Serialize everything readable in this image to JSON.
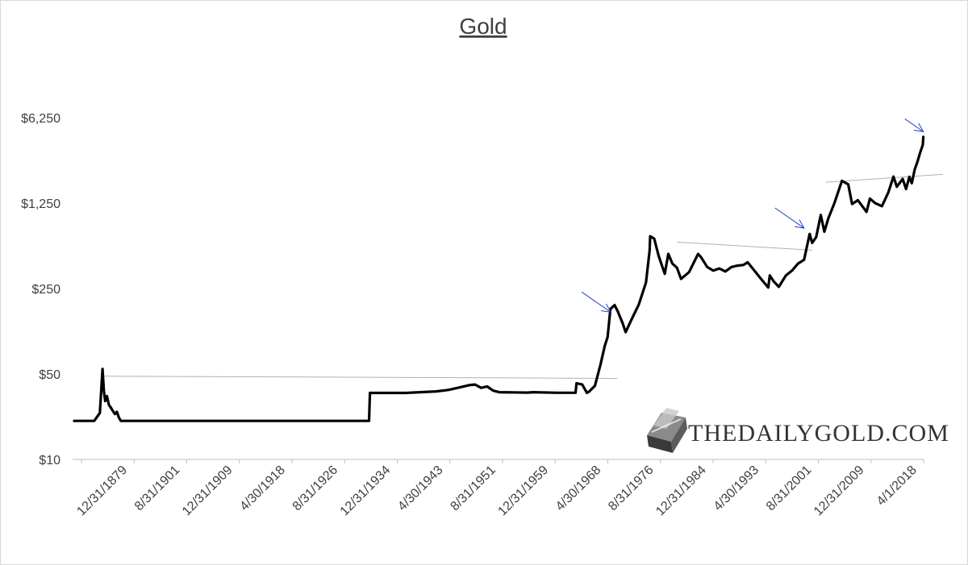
{
  "chart_data": {
    "type": "line",
    "title": "Gold",
    "xlabel": "",
    "ylabel": "",
    "y_scale": "log",
    "ylim": [
      10,
      12000
    ],
    "y_ticks": [
      {
        "value": 10,
        "label": "$10"
      },
      {
        "value": 50,
        "label": "$50"
      },
      {
        "value": 250,
        "label": "$250"
      },
      {
        "value": 1250,
        "label": "$1,250"
      },
      {
        "value": 6250,
        "label": "$6,250"
      }
    ],
    "x_ticks": [
      "12/31/1879",
      "8/31/1901",
      "12/31/1909",
      "4/30/1918",
      "8/31/1926",
      "12/31/1934",
      "4/30/1943",
      "8/31/1951",
      "12/31/1959",
      "4/30/1968",
      "8/31/1976",
      "12/31/1984",
      "4/30/1993",
      "8/31/2001",
      "12/31/2009",
      "4/1/2018"
    ],
    "grid": false,
    "legend": "none",
    "series": [
      {
        "color": "#000000",
        "points": [
          [
            "1870-01",
            20.67
          ],
          [
            "1875-01",
            20.67
          ],
          [
            "1876-06",
            24.0
          ],
          [
            "1877-02",
            55.0
          ],
          [
            "1877-06",
            36.0
          ],
          [
            "1877-10",
            30.0
          ],
          [
            "1878-03",
            33.0
          ],
          [
            "1878-09",
            28.0
          ],
          [
            "1879-03",
            26.5
          ],
          [
            "1879-09",
            25.0
          ],
          [
            "1880-03",
            23.5
          ],
          [
            "1880-09",
            24.5
          ],
          [
            "1881-03",
            22.0
          ],
          [
            "1881-09",
            20.67
          ],
          [
            "1900-01",
            20.67
          ],
          [
            "1920-01",
            20.67
          ],
          [
            "1933-12",
            20.67
          ],
          [
            "1934-02",
            35.0
          ],
          [
            "1940-01",
            35.0
          ],
          [
            "1945-01",
            36.0
          ],
          [
            "1947-01",
            37.0
          ],
          [
            "1949-01",
            39.0
          ],
          [
            "1950-06",
            40.5
          ],
          [
            "1951-06",
            41.0
          ],
          [
            "1952-06",
            38.5
          ],
          [
            "1953-06",
            39.5
          ],
          [
            "1954-06",
            36.5
          ],
          [
            "1955-06",
            35.5
          ],
          [
            "1960-01",
            35.2
          ],
          [
            "1961-01",
            35.5
          ],
          [
            "1965-01",
            35.1
          ],
          [
            "1968-01",
            35.1
          ],
          [
            "1968-03",
            42.0
          ],
          [
            "1969-03",
            41.0
          ],
          [
            "1970-01",
            35.0
          ],
          [
            "1970-06",
            36.0
          ],
          [
            "1971-06",
            40.0
          ],
          [
            "1972-06",
            60.0
          ],
          [
            "1973-03",
            85.0
          ],
          [
            "1973-09",
            100.0
          ],
          [
            "1974-03",
            170.0
          ],
          [
            "1974-12",
            183.0
          ],
          [
            "1975-06",
            165.0
          ],
          [
            "1976-03",
            130.0
          ],
          [
            "1976-08",
            110.0
          ],
          [
            "1977-06",
            140.0
          ],
          [
            "1978-06",
            185.0
          ],
          [
            "1979-06",
            280.0
          ],
          [
            "1979-12",
            510.0
          ],
          [
            "1980-01",
            670.0
          ],
          [
            "1980-09",
            640.0
          ],
          [
            "1981-06",
            460.0
          ],
          [
            "1982-06",
            330.0
          ],
          [
            "1983-01",
            480.0
          ],
          [
            "1983-09",
            400.0
          ],
          [
            "1984-06",
            370.0
          ],
          [
            "1985-02",
            300.0
          ],
          [
            "1986-06",
            340.0
          ],
          [
            "1987-12",
            480.0
          ],
          [
            "1988-06",
            450.0
          ],
          [
            "1989-06",
            375.0
          ],
          [
            "1990-06",
            350.0
          ],
          [
            "1991-06",
            365.0
          ],
          [
            "1992-06",
            345.0
          ],
          [
            "1993-06",
            375.0
          ],
          [
            "1994-06",
            385.0
          ],
          [
            "1995-06",
            390.0
          ],
          [
            "1996-02",
            410.0
          ],
          [
            "1997-06",
            340.0
          ],
          [
            "1998-06",
            295.0
          ],
          [
            "1999-07",
            255.0
          ],
          [
            "1999-10",
            320.0
          ],
          [
            "2000-06",
            285.0
          ],
          [
            "2001-04",
            258.0
          ],
          [
            "2002-06",
            320.0
          ],
          [
            "2003-06",
            350.0
          ],
          [
            "2004-06",
            400.0
          ],
          [
            "2005-06",
            430.0
          ],
          [
            "2006-05",
            700.0
          ],
          [
            "2006-10",
            590.0
          ],
          [
            "2007-06",
            660.0
          ],
          [
            "2008-03",
            1000.0
          ],
          [
            "2008-10",
            730.0
          ],
          [
            "2009-06",
            940.0
          ],
          [
            "2010-06",
            1250.0
          ],
          [
            "2011-09",
            1900.0
          ],
          [
            "2012-10",
            1780.0
          ],
          [
            "2013-06",
            1230.0
          ],
          [
            "2014-06",
            1320.0
          ],
          [
            "2015-12",
            1060.0
          ],
          [
            "2016-07",
            1360.0
          ],
          [
            "2017-06",
            1250.0
          ],
          [
            "2018-08",
            1180.0
          ],
          [
            "2019-09",
            1520.0
          ],
          [
            "2020-08",
            2060.0
          ],
          [
            "2021-03",
            1700.0
          ],
          [
            "2022-03",
            1970.0
          ],
          [
            "2022-10",
            1630.0
          ],
          [
            "2023-05",
            2050.0
          ],
          [
            "2023-10",
            1820.0
          ],
          [
            "2024-04",
            2350.0
          ],
          [
            "2024-10",
            2750.0
          ],
          [
            "2025-04",
            3300.0
          ],
          [
            "2025-09",
            3750.0
          ],
          [
            "2025-10",
            4350.0
          ]
        ]
      }
    ],
    "annotations": {
      "resistance_lines": [
        {
          "from": [
            "1877-06",
            48.0
          ],
          "to": [
            "1975-06",
            46.0
          ]
        },
        {
          "from": [
            "1984-06",
            600.0
          ],
          "to": [
            "2006-10",
            515.0
          ]
        },
        {
          "from": [
            "2009-01",
            1850.0
          ],
          "to": [
            "2027-06",
            2150.0
          ]
        }
      ],
      "arrows": [
        {
          "target": [
            "1974-04",
            160.0
          ]
        },
        {
          "target": [
            "2005-06",
            780.0
          ]
        },
        {
          "target": [
            "2025-10",
            4800.0
          ]
        }
      ],
      "line_color": "#b0b0b0",
      "arrow_color": "#1f3fc0"
    },
    "watermark": "THEDAILYGOLD.COM"
  }
}
